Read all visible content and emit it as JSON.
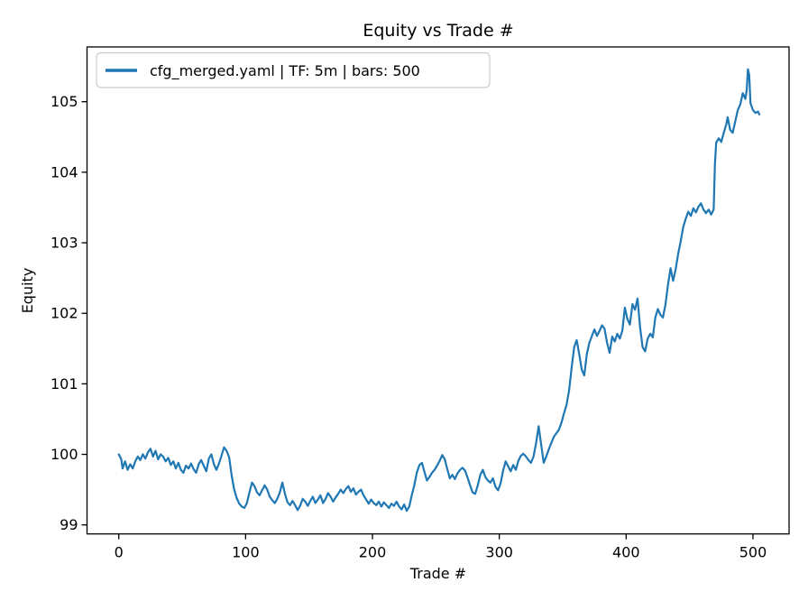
{
  "figure": {
    "title": "Equity vs Trade #",
    "xlabel": "Trade #",
    "ylabel": "Equity"
  },
  "legend": {
    "label": "cfg_merged.yaml | TF: 5m | bars: 500",
    "line_color": "#1f77b4",
    "position": "upper left"
  },
  "chart_data": {
    "type": "line",
    "title": "Equity vs Trade #",
    "xlabel": "Trade #",
    "ylabel": "Equity",
    "x_ticks": [
      0,
      100,
      200,
      300,
      400,
      500
    ],
    "y_ticks": [
      99,
      100,
      101,
      102,
      103,
      104,
      105
    ],
    "xlim": [
      -25,
      528
    ],
    "ylim": [
      98.87,
      105.77
    ],
    "grid": false,
    "legend_position": "upper left",
    "series": [
      {
        "name": "cfg_merged.yaml | TF: 5m | bars: 500",
        "color": "#1f77b4",
        "points": [
          [
            0,
            100.0
          ],
          [
            2,
            99.93
          ],
          [
            3,
            99.8
          ],
          [
            5,
            99.9
          ],
          [
            7,
            99.78
          ],
          [
            9,
            99.86
          ],
          [
            11,
            99.8
          ],
          [
            13,
            99.9
          ],
          [
            15,
            99.97
          ],
          [
            17,
            99.92
          ],
          [
            19,
            100.0
          ],
          [
            21,
            99.94
          ],
          [
            23,
            100.03
          ],
          [
            25,
            100.08
          ],
          [
            27,
            99.97
          ],
          [
            29,
            100.05
          ],
          [
            31,
            99.93
          ],
          [
            33,
            100.0
          ],
          [
            35,
            99.97
          ],
          [
            37,
            99.9
          ],
          [
            39,
            99.95
          ],
          [
            41,
            99.85
          ],
          [
            43,
            99.9
          ],
          [
            45,
            99.8
          ],
          [
            47,
            99.88
          ],
          [
            49,
            99.78
          ],
          [
            51,
            99.74
          ],
          [
            53,
            99.84
          ],
          [
            55,
            99.8
          ],
          [
            57,
            99.87
          ],
          [
            59,
            99.79
          ],
          [
            61,
            99.74
          ],
          [
            63,
            99.86
          ],
          [
            65,
            99.92
          ],
          [
            67,
            99.84
          ],
          [
            69,
            99.76
          ],
          [
            71,
            99.94
          ],
          [
            73,
            100.0
          ],
          [
            75,
            99.86
          ],
          [
            77,
            99.78
          ],
          [
            79,
            99.87
          ],
          [
            81,
            99.98
          ],
          [
            83,
            100.1
          ],
          [
            85,
            100.05
          ],
          [
            87,
            99.96
          ],
          [
            89,
            99.7
          ],
          [
            91,
            99.5
          ],
          [
            93,
            99.38
          ],
          [
            95,
            99.3
          ],
          [
            97,
            99.26
          ],
          [
            99,
            99.24
          ],
          [
            101,
            99.31
          ],
          [
            103,
            99.46
          ],
          [
            105,
            99.6
          ],
          [
            107,
            99.55
          ],
          [
            109,
            99.46
          ],
          [
            111,
            99.42
          ],
          [
            113,
            99.49
          ],
          [
            115,
            99.56
          ],
          [
            117,
            99.5
          ],
          [
            119,
            99.4
          ],
          [
            121,
            99.35
          ],
          [
            123,
            99.31
          ],
          [
            125,
            99.37
          ],
          [
            127,
            99.46
          ],
          [
            129,
            99.6
          ],
          [
            131,
            99.44
          ],
          [
            133,
            99.32
          ],
          [
            135,
            99.28
          ],
          [
            137,
            99.34
          ],
          [
            139,
            99.28
          ],
          [
            141,
            99.21
          ],
          [
            143,
            99.27
          ],
          [
            145,
            99.37
          ],
          [
            147,
            99.33
          ],
          [
            149,
            99.27
          ],
          [
            151,
            99.34
          ],
          [
            153,
            99.4
          ],
          [
            155,
            99.31
          ],
          [
            157,
            99.36
          ],
          [
            159,
            99.42
          ],
          [
            161,
            99.31
          ],
          [
            163,
            99.37
          ],
          [
            165,
            99.45
          ],
          [
            167,
            99.4
          ],
          [
            169,
            99.33
          ],
          [
            171,
            99.39
          ],
          [
            173,
            99.44
          ],
          [
            175,
            99.5
          ],
          [
            177,
            99.45
          ],
          [
            179,
            99.51
          ],
          [
            181,
            99.55
          ],
          [
            183,
            99.47
          ],
          [
            185,
            99.52
          ],
          [
            187,
            99.43
          ],
          [
            189,
            99.47
          ],
          [
            191,
            99.5
          ],
          [
            193,
            99.42
          ],
          [
            195,
            99.36
          ],
          [
            197,
            99.3
          ],
          [
            199,
            99.36
          ],
          [
            201,
            99.31
          ],
          [
            203,
            99.28
          ],
          [
            205,
            99.33
          ],
          [
            207,
            99.26
          ],
          [
            209,
            99.32
          ],
          [
            211,
            99.28
          ],
          [
            213,
            99.24
          ],
          [
            215,
            99.3
          ],
          [
            217,
            99.27
          ],
          [
            219,
            99.33
          ],
          [
            221,
            99.26
          ],
          [
            223,
            99.22
          ],
          [
            225,
            99.29
          ],
          [
            227,
            99.2
          ],
          [
            229,
            99.26
          ],
          [
            231,
            99.42
          ],
          [
            233,
            99.56
          ],
          [
            235,
            99.74
          ],
          [
            237,
            99.85
          ],
          [
            239,
            99.88
          ],
          [
            241,
            99.75
          ],
          [
            243,
            99.63
          ],
          [
            245,
            99.68
          ],
          [
            247,
            99.74
          ],
          [
            249,
            99.78
          ],
          [
            251,
            99.84
          ],
          [
            253,
            99.91
          ],
          [
            255,
            99.99
          ],
          [
            257,
            99.93
          ],
          [
            259,
            99.79
          ],
          [
            261,
            99.66
          ],
          [
            263,
            99.71
          ],
          [
            265,
            99.65
          ],
          [
            267,
            99.73
          ],
          [
            269,
            99.78
          ],
          [
            271,
            99.81
          ],
          [
            273,
            99.77
          ],
          [
            275,
            99.67
          ],
          [
            277,
            99.56
          ],
          [
            279,
            99.46
          ],
          [
            281,
            99.44
          ],
          [
            283,
            99.56
          ],
          [
            285,
            99.71
          ],
          [
            287,
            99.78
          ],
          [
            289,
            99.68
          ],
          [
            291,
            99.63
          ],
          [
            293,
            99.6
          ],
          [
            295,
            99.66
          ],
          [
            297,
            99.54
          ],
          [
            299,
            99.49
          ],
          [
            301,
            99.59
          ],
          [
            303,
            99.77
          ],
          [
            305,
            99.9
          ],
          [
            307,
            99.83
          ],
          [
            309,
            99.76
          ],
          [
            311,
            99.85
          ],
          [
            313,
            99.78
          ],
          [
            315,
            99.91
          ],
          [
            317,
            99.98
          ],
          [
            319,
            100.01
          ],
          [
            321,
            99.97
          ],
          [
            323,
            99.92
          ],
          [
            325,
            99.88
          ],
          [
            327,
            99.97
          ],
          [
            329,
            100.16
          ],
          [
            331,
            100.4
          ],
          [
            333,
            100.14
          ],
          [
            335,
            99.88
          ],
          [
            337,
            99.97
          ],
          [
            339,
            100.07
          ],
          [
            341,
            100.16
          ],
          [
            343,
            100.25
          ],
          [
            345,
            100.3
          ],
          [
            347,
            100.35
          ],
          [
            349,
            100.45
          ],
          [
            351,
            100.58
          ],
          [
            353,
            100.7
          ],
          [
            355,
            100.9
          ],
          [
            357,
            101.22
          ],
          [
            359,
            101.52
          ],
          [
            361,
            101.62
          ],
          [
            363,
            101.42
          ],
          [
            365,
            101.2
          ],
          [
            367,
            101.12
          ],
          [
            369,
            101.42
          ],
          [
            371,
            101.58
          ],
          [
            373,
            101.68
          ],
          [
            375,
            101.77
          ],
          [
            377,
            101.68
          ],
          [
            379,
            101.75
          ],
          [
            381,
            101.83
          ],
          [
            383,
            101.78
          ],
          [
            385,
            101.58
          ],
          [
            387,
            101.44
          ],
          [
            389,
            101.67
          ],
          [
            391,
            101.6
          ],
          [
            393,
            101.71
          ],
          [
            395,
            101.64
          ],
          [
            397,
            101.75
          ],
          [
            399,
            102.08
          ],
          [
            401,
            101.92
          ],
          [
            403,
            101.84
          ],
          [
            405,
            102.13
          ],
          [
            407,
            102.05
          ],
          [
            409,
            102.21
          ],
          [
            411,
            101.8
          ],
          [
            413,
            101.52
          ],
          [
            415,
            101.46
          ],
          [
            417,
            101.64
          ],
          [
            419,
            101.71
          ],
          [
            421,
            101.66
          ],
          [
            423,
            101.94
          ],
          [
            425,
            102.06
          ],
          [
            427,
            101.98
          ],
          [
            429,
            101.94
          ],
          [
            431,
            102.12
          ],
          [
            433,
            102.4
          ],
          [
            435,
            102.64
          ],
          [
            437,
            102.46
          ],
          [
            439,
            102.62
          ],
          [
            441,
            102.84
          ],
          [
            443,
            103.02
          ],
          [
            445,
            103.22
          ],
          [
            447,
            103.34
          ],
          [
            449,
            103.44
          ],
          [
            451,
            103.38
          ],
          [
            453,
            103.49
          ],
          [
            455,
            103.43
          ],
          [
            457,
            103.51
          ],
          [
            459,
            103.56
          ],
          [
            461,
            103.47
          ],
          [
            463,
            103.42
          ],
          [
            465,
            103.47
          ],
          [
            467,
            103.4
          ],
          [
            469,
            103.47
          ],
          [
            470,
            104.12
          ],
          [
            471,
            104.42
          ],
          [
            473,
            104.48
          ],
          [
            475,
            104.43
          ],
          [
            477,
            104.56
          ],
          [
            479,
            104.68
          ],
          [
            480,
            104.78
          ],
          [
            482,
            104.6
          ],
          [
            484,
            104.56
          ],
          [
            486,
            104.72
          ],
          [
            488,
            104.88
          ],
          [
            490,
            104.96
          ],
          [
            492,
            105.12
          ],
          [
            494,
            105.04
          ],
          [
            495,
            105.16
          ],
          [
            496,
            105.46
          ],
          [
            497,
            105.38
          ],
          [
            498,
            104.98
          ],
          [
            500,
            104.88
          ],
          [
            502,
            104.84
          ],
          [
            504,
            104.86
          ],
          [
            505,
            104.82
          ]
        ]
      }
    ]
  }
}
